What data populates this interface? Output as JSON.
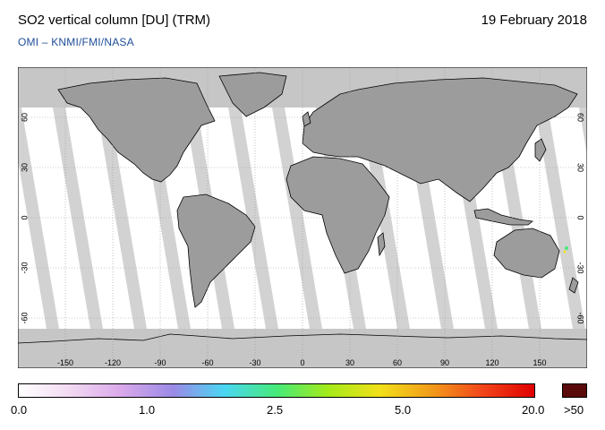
{
  "header": {
    "title": "SO2 vertical column [DU] (TRM)",
    "date": "19 February 2018",
    "subtitle": "OMI  –  KNMI/FMI/NASA"
  },
  "map": {
    "projection": "plate-carree",
    "lon_ticks_top": [
      "-150",
      "-120",
      "-90",
      "-60",
      "-30",
      "0",
      "30",
      "60",
      "90",
      "120",
      "150"
    ],
    "lon_ticks_bottom": [
      "-150",
      "-120",
      "-90",
      "-60",
      "-30",
      "0",
      "30",
      "60",
      "90",
      "120",
      "150"
    ],
    "lat_ticks_left": [
      "60",
      "30",
      "0",
      "-30",
      "-60"
    ],
    "lat_ticks_right": [
      "60",
      "30",
      "0",
      "-30",
      "-60"
    ],
    "lon_values": [
      -150,
      -120,
      -90,
      -60,
      -30,
      0,
      30,
      60,
      90,
      120,
      150
    ],
    "lat_values": [
      60,
      30,
      0,
      -30,
      -60
    ],
    "colors": {
      "no_data": "#b9b9b9",
      "land_no_data": "#9c9c9c",
      "swath_gap": "#d2d2d2",
      "ocean_low": "#ffffff",
      "coastline": "#000000",
      "graticule": "#9a9a9a"
    }
  },
  "colorbar": {
    "labels": [
      "0.0",
      "1.0",
      "2.5",
      "5.0",
      "20.0",
      ">50"
    ],
    "label_values": [
      0.0,
      1.0,
      2.5,
      5.0,
      20.0
    ],
    "colors": [
      "#ffffff",
      "#f2d9f2",
      "#d9a8ea",
      "#9a8ae6",
      "#49d7f2",
      "#46ea7a",
      "#a4ea1a",
      "#f2e01a",
      "#f29c1a",
      "#f2461a",
      "#e00000"
    ],
    "overflow_color": "#5a0a0a"
  }
}
